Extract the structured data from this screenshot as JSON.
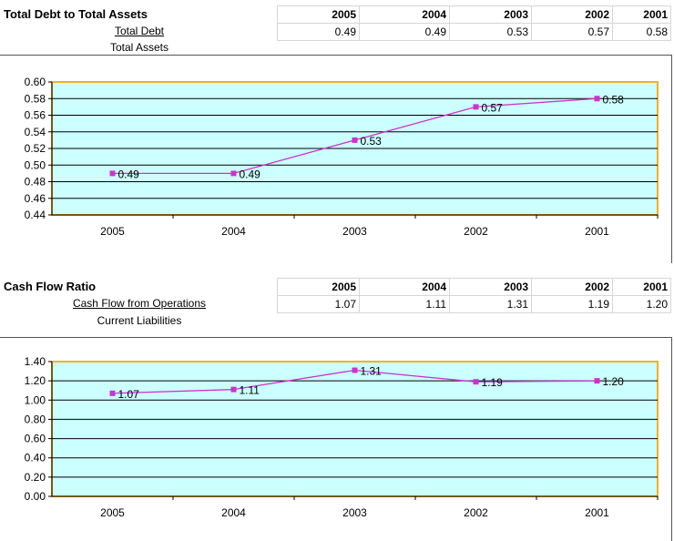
{
  "chart_data": [
    {
      "type": "line",
      "title": "Total Debt to Total Assets",
      "numerator": "Total Debt",
      "denominator": "Total Assets",
      "categories": [
        "2005",
        "2004",
        "2003",
        "2002",
        "2001"
      ],
      "values": [
        0.49,
        0.49,
        0.53,
        0.57,
        0.58
      ],
      "labels": [
        "0.49",
        "0.49",
        "0.53",
        "0.57",
        "0.58"
      ],
      "ylim": [
        0.44,
        0.6
      ],
      "ystep": 0.02,
      "ytick_labels": [
        "0.60",
        "0.58",
        "0.56",
        "0.54",
        "0.52",
        "0.50",
        "0.48",
        "0.46",
        "0.44"
      ],
      "grid": true,
      "legend": "none",
      "colors": {
        "line": "#cc33cc",
        "plot_bg": "#ccffff",
        "plot_border": "#f0b030"
      }
    },
    {
      "type": "line",
      "title": "Cash Flow Ratio",
      "numerator": "Cash Flow from Operations",
      "denominator": "Current Liabilities",
      "categories": [
        "2005",
        "2004",
        "2003",
        "2002",
        "2001"
      ],
      "values": [
        1.07,
        1.11,
        1.31,
        1.19,
        1.2
      ],
      "labels": [
        "1.07",
        "1.11",
        "1.31",
        "1.19",
        "1.20"
      ],
      "ylim": [
        0,
        1.4
      ],
      "ystep": 0.2,
      "ytick_labels": [
        "1.40",
        "1.20",
        "1.00",
        "0.80",
        "0.60",
        "0.40",
        "0.20",
        "0.00"
      ],
      "grid": true,
      "legend": "none",
      "colors": {
        "line": "#cc33cc",
        "plot_bg": "#ccffff",
        "plot_border": "#f0b030"
      }
    }
  ]
}
